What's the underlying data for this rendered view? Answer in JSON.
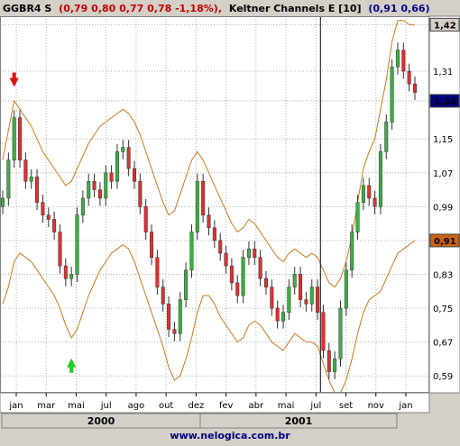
{
  "header": {
    "ticker": "GGBR4 S",
    "quote": "(0,79  0,80  0,77  0,78  -1,18%),",
    "indicator": "Keltner Channels E [10]",
    "indicator_values": "(0,91  0,66)"
  },
  "footer": {
    "url": "www.nelogica.com.br"
  },
  "colors": {
    "background": "#ffffff",
    "grid": "#b0b0b0",
    "up_candle": "#3cb043",
    "down_candle": "#e03030",
    "channel": "#c87820",
    "badge_blue": "#000080",
    "badge_orange": "#c86414",
    "arrow_up": "#22cc22",
    "arrow_down": "#e01010"
  },
  "chart_data": {
    "type": "candlestick",
    "y_ticks": [
      "1,42",
      "1,31",
      "1,24",
      "1,15",
      "1,07",
      "0,99",
      "0,91",
      "0,83",
      "0,75",
      "0,67",
      "0,59"
    ],
    "badges": [
      {
        "label": "1,42",
        "value": 1.42,
        "style": "gray"
      },
      {
        "label": "1,24",
        "value": 1.24,
        "style": "blue"
      },
      {
        "label": "0,91",
        "value": 0.91,
        "style": "orange"
      }
    ],
    "x_ticks": [
      "jan",
      "mar",
      "mai",
      "jul",
      "ago",
      "out",
      "dez",
      "fev",
      "abr",
      "mai",
      "jul",
      "set",
      "nov",
      "jan"
    ],
    "years": [
      "2000",
      "2001"
    ],
    "ylim": [
      0.55,
      1.44
    ],
    "close": [
      1.01,
      1.1,
      1.2,
      1.1,
      1.05,
      1.06,
      1.0,
      0.97,
      0.96,
      0.93,
      0.85,
      0.82,
      0.83,
      0.97,
      1.01,
      1.05,
      1.03,
      1.01,
      1.07,
      1.05,
      1.12,
      1.13,
      1.08,
      1.05,
      0.99,
      0.93,
      0.87,
      0.8,
      0.76,
      0.7,
      0.69,
      0.77,
      0.84,
      0.93,
      1.05,
      0.97,
      0.94,
      0.91,
      0.88,
      0.85,
      0.81,
      0.78,
      0.87,
      0.89,
      0.87,
      0.82,
      0.8,
      0.75,
      0.72,
      0.74,
      0.8,
      0.83,
      0.77,
      0.76,
      0.8,
      0.74,
      0.65,
      0.6,
      0.63,
      0.75,
      0.84,
      0.93,
      1.0,
      1.04,
      1.01,
      0.99,
      1.12,
      1.19,
      1.32,
      1.36,
      1.31,
      1.28,
      1.26
    ],
    "upper_band": [
      1.1,
      1.17,
      1.24,
      1.22,
      1.2,
      1.18,
      1.15,
      1.12,
      1.1,
      1.08,
      1.06,
      1.04,
      1.05,
      1.08,
      1.11,
      1.14,
      1.16,
      1.18,
      1.19,
      1.2,
      1.21,
      1.22,
      1.21,
      1.19,
      1.16,
      1.12,
      1.08,
      1.04,
      1.0,
      0.97,
      0.98,
      1.02,
      1.06,
      1.1,
      1.12,
      1.1,
      1.07,
      1.04,
      1.01,
      0.98,
      0.95,
      0.93,
      0.94,
      0.96,
      0.95,
      0.93,
      0.91,
      0.89,
      0.87,
      0.86,
      0.88,
      0.89,
      0.88,
      0.87,
      0.88,
      0.87,
      0.84,
      0.81,
      0.8,
      0.82,
      0.86,
      0.92,
      1.0,
      1.08,
      1.12,
      1.15,
      1.22,
      1.29,
      1.38,
      1.43,
      1.43,
      1.42,
      1.42
    ],
    "lower_band": [
      0.76,
      0.8,
      0.86,
      0.88,
      0.87,
      0.86,
      0.84,
      0.82,
      0.8,
      0.78,
      0.75,
      0.71,
      0.68,
      0.7,
      0.74,
      0.78,
      0.81,
      0.84,
      0.86,
      0.88,
      0.89,
      0.9,
      0.89,
      0.86,
      0.82,
      0.78,
      0.74,
      0.7,
      0.66,
      0.61,
      0.58,
      0.59,
      0.63,
      0.68,
      0.74,
      0.78,
      0.78,
      0.76,
      0.73,
      0.71,
      0.69,
      0.67,
      0.68,
      0.71,
      0.72,
      0.71,
      0.69,
      0.67,
      0.66,
      0.65,
      0.67,
      0.69,
      0.68,
      0.67,
      0.67,
      0.66,
      0.62,
      0.58,
      0.55,
      0.55,
      0.58,
      0.63,
      0.69,
      0.74,
      0.77,
      0.78,
      0.79,
      0.82,
      0.85,
      0.88,
      0.89,
      0.9,
      0.91
    ],
    "signals": [
      {
        "type": "sell",
        "index": 2
      },
      {
        "type": "buy",
        "index": 12
      },
      {
        "type": "buy",
        "index": 30
      },
      {
        "type": "buy",
        "index": 57
      }
    ],
    "cursor_index": 55
  }
}
